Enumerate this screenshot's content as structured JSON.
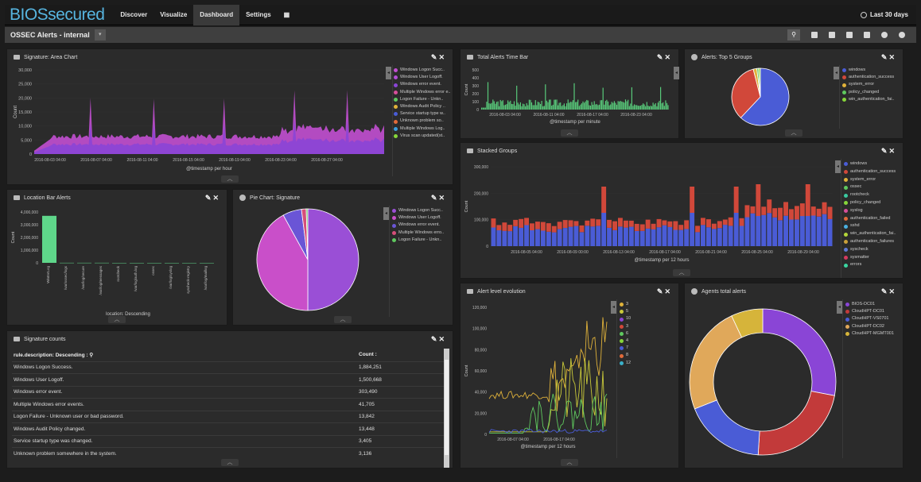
{
  "app": {
    "logo": "BIOSsecured"
  },
  "nav": {
    "items": [
      "Discover",
      "Visualize",
      "Dashboard",
      "Settings"
    ],
    "active": "Dashboard",
    "time_range": "Last 30 days"
  },
  "dashboard": {
    "title": "OSSEC Alerts - internal",
    "caret": "▾"
  },
  "panels": {
    "area": {
      "title": "Signature: Area Chart",
      "xlabel": "@timestamp per hour",
      "ylabel": "Count",
      "yticks": [
        "30,000",
        "25,000",
        "20,000",
        "15,000",
        "10,000",
        "5,000",
        "0"
      ],
      "xticks": [
        "2016-08-03 04:00",
        "2016-08-07 04:00",
        "2016-08-11 04:00",
        "2016-08-15 04:00",
        "2016-08-19 04:00",
        "2016-08-23 04:00",
        "2016-08-27 04:00"
      ],
      "legend": [
        {
          "name": "Windows Logon Succ..",
          "color": "#c24fd1"
        },
        {
          "name": "Windows User Logoff.",
          "color": "#b34dd6"
        },
        {
          "name": "Windows error event.",
          "color": "#8a45d6"
        },
        {
          "name": "Multiple Windows error e..",
          "color": "#d64f9a"
        },
        {
          "name": "Logon Failure - Unkn..",
          "color": "#5fc95f"
        },
        {
          "name": "Windows Audit Policy ..",
          "color": "#e0b23a"
        },
        {
          "name": "Service startup type w..",
          "color": "#4a5cd6"
        },
        {
          "name": "Unknown problem so..",
          "color": "#e06a3a"
        },
        {
          "name": "Multiple Windows Log..",
          "color": "#3a9ee0"
        },
        {
          "name": "Virus scan updated(st..",
          "color": "#86d63a"
        }
      ]
    },
    "timebar": {
      "title": "Total Alerts Time Bar",
      "xlabel": "@timestamp per minute",
      "ylabel": "Count",
      "yticks": [
        "500",
        "400",
        "300",
        "200",
        "100",
        "0"
      ],
      "xticks": [
        "2016-08-03 04:00",
        "2016-08-11 04:00",
        "2016-08-17 04:00",
        "2016-08-23 04:00"
      ],
      "color": "#58c97a"
    },
    "top5": {
      "title": "Alerts: Top 5 Groups",
      "legend": [
        {
          "name": "windows",
          "color": "#4a5cd6"
        },
        {
          "name": "authentication_success",
          "color": "#d1483a"
        },
        {
          "name": "system_error",
          "color": "#e0b23a"
        },
        {
          "name": "policy_changed",
          "color": "#5fc95f"
        },
        {
          "name": "win_authentication_fai..",
          "color": "#86d63a"
        }
      ],
      "slices": [
        0.62,
        0.34,
        0.02,
        0.01,
        0.01
      ]
    },
    "stacked": {
      "title": "Stacked Groups",
      "xlabel": "@timestamp per 12 hours",
      "ylabel": "Count",
      "yticks": [
        "300,000",
        "200,000",
        "100,000",
        "0"
      ],
      "xticks": [
        "2016-08-05 04:00",
        "2016-08-09 00:00",
        "2016-08-13 04:00",
        "2016-08-17 04:00",
        "2016-08-21 04:00",
        "2016-08-25 04:00",
        "2016-08-29 04:00"
      ],
      "legend": [
        {
          "name": "windows",
          "color": "#4a5cd6"
        },
        {
          "name": "authentication_success",
          "color": "#d1483a"
        },
        {
          "name": "system_error",
          "color": "#e0b23a"
        },
        {
          "name": "ossec",
          "color": "#5fc95f"
        },
        {
          "name": "rootcheck",
          "color": "#3ac9a0"
        },
        {
          "name": "policy_changed",
          "color": "#86d63a"
        },
        {
          "name": "syslog",
          "color": "#d64f9a"
        },
        {
          "name": "authentication_failed",
          "color": "#e06a3a"
        },
        {
          "name": "sshd",
          "color": "#4ab0e0"
        },
        {
          "name": "win_authentication_fai..",
          "color": "#b3d63a"
        },
        {
          "name": "authentication_failures",
          "color": "#c9a03a"
        },
        {
          "name": "syscheck",
          "color": "#5f7ad6"
        },
        {
          "name": "sysmatter",
          "color": "#d63a5f"
        },
        {
          "name": "errors",
          "color": "#3ad6a0"
        }
      ]
    },
    "location": {
      "title": "Location Bar Alerts",
      "xlabel": "location: Descending",
      "ylabel": "Count",
      "yticks": [
        "4,000,000",
        "3,000,000",
        "2,000,000",
        "1,000,000",
        "0"
      ],
      "categories": [
        "WinEvtLog",
        "/var/ossec/logs",
        "/var/log/secure",
        "/var/log/messages",
        "rootcheck",
        "/var/log/auth.log",
        "ossec",
        "/var/log/syslog",
        "syscheck-registry",
        "/var/log/maillog"
      ],
      "values": [
        3700000,
        8000,
        5000,
        4000,
        3000,
        2000,
        1500,
        1000,
        800,
        500
      ],
      "color": "#5fd68a"
    },
    "pie": {
      "title": "Pie Chart: Signature",
      "legend": [
        {
          "name": "Windows Logon Succ..",
          "color": "#9a4fd6"
        },
        {
          "name": "Windows User Logoff.",
          "color": "#c94fc9"
        },
        {
          "name": "Windows error event.",
          "color": "#6a55d6"
        },
        {
          "name": "Multiple Windows erro..",
          "color": "#d64f7a"
        },
        {
          "name": "Logon Failure - Unkn..",
          "color": "#5fc95f"
        }
      ],
      "slices": [
        0.5,
        0.42,
        0.06,
        0.015,
        0.005
      ]
    },
    "evolution": {
      "title": "Alert level evolution",
      "xlabel": "@timestamp per 12 hours",
      "ylabel": "Count",
      "yticks": [
        "120,000",
        "100,000",
        "80,000",
        "60,000",
        "40,000",
        "20,000",
        "0"
      ],
      "xticks": [
        "2016-08-07 04:00",
        "2016-08-17 04:00"
      ],
      "legend": [
        {
          "name": "3",
          "color": "#e0b23a"
        },
        {
          "name": "5",
          "color": "#c9c93a"
        },
        {
          "name": "10",
          "color": "#8a45d6"
        },
        {
          "name": "3",
          "color": "#d1483a"
        },
        {
          "name": "6",
          "color": "#5fc95f"
        },
        {
          "name": "4",
          "color": "#86d63a"
        },
        {
          "name": "7",
          "color": "#4a5cd6"
        },
        {
          "name": "8",
          "color": "#e06a3a"
        },
        {
          "name": "12",
          "color": "#3ab0c9"
        }
      ]
    },
    "agents": {
      "title": "Agents total alerts",
      "legend": [
        {
          "name": "BIOS-DC01",
          "color": "#8a45d6"
        },
        {
          "name": "CloudHPT-DC01",
          "color": "#c23a3a"
        },
        {
          "name": "CloudHPT-VS0701",
          "color": "#4a5cd6"
        },
        {
          "name": "CloudHPT-DC02",
          "color": "#e0a85a"
        },
        {
          "name": "CloudHPT-MGMT001",
          "color": "#d6b43a"
        }
      ],
      "slices": [
        0.28,
        0.23,
        0.18,
        0.24,
        0.07
      ]
    },
    "table": {
      "title": "Signature counts",
      "col1": "rule.description: Descending",
      "col2": "Count",
      "rows": [
        {
          "desc": "Windows Logon Success.",
          "count": "1,884,251"
        },
        {
          "desc": "Windows User Logoff.",
          "count": "1,500,668"
        },
        {
          "desc": "Windows error event.",
          "count": "303,490"
        },
        {
          "desc": "Multiple Windows error events.",
          "count": "41,705"
        },
        {
          "desc": "Logon Failure - Unknown user or bad password.",
          "count": "13,842"
        },
        {
          "desc": "Windows Audit Policy changed.",
          "count": "13,448"
        },
        {
          "desc": "Service startup type was changed.",
          "count": "3,405"
        },
        {
          "desc": "Unknown problem somewhere in the system.",
          "count": "3,136"
        }
      ]
    }
  }
}
